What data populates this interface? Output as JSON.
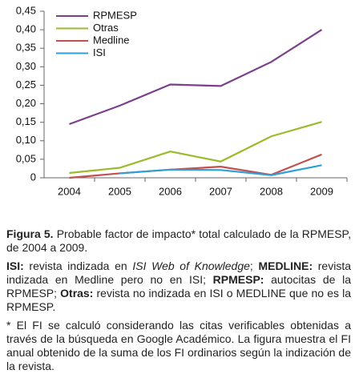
{
  "chart_data": {
    "type": "line",
    "categories": [
      "2004",
      "2005",
      "2006",
      "2007",
      "2008",
      "2009"
    ],
    "series": [
      {
        "name": "RPMESP",
        "color": "#7b3f8c",
        "values": [
          0.145,
          0.195,
          0.252,
          0.248,
          0.313,
          0.4
        ]
      },
      {
        "name": "Otras",
        "color": "#9bbb2c",
        "values": [
          0.013,
          0.027,
          0.071,
          0.044,
          0.112,
          0.151
        ]
      },
      {
        "name": "Medline",
        "color": "#c0504d",
        "values": [
          0.0,
          0.012,
          0.022,
          0.03,
          0.008,
          0.063
        ]
      },
      {
        "name": "ISI",
        "color": "#2e9fd8",
        "values": [
          null,
          0.012,
          0.022,
          0.021,
          0.007,
          0.034
        ]
      }
    ],
    "ylim": [
      0,
      0.45
    ],
    "yticks": [
      {
        "value": 0,
        "label": "0"
      },
      {
        "value": 0.05,
        "label": "0,05"
      },
      {
        "value": 0.1,
        "label": "0,10"
      },
      {
        "value": 0.15,
        "label": "0,15"
      },
      {
        "value": 0.2,
        "label": "0,20"
      },
      {
        "value": 0.25,
        "label": "0,25"
      },
      {
        "value": 0.3,
        "label": "0,30"
      },
      {
        "value": 0.35,
        "label": "0,35"
      },
      {
        "value": 0.4,
        "label": "0,40"
      },
      {
        "value": 0.45,
        "label": "0,45"
      }
    ],
    "legend": "upper left"
  },
  "caption": {
    "figure_label": "Figura 5.",
    "figure_text": " Probable factor de impacto* total calculado de la RPMESP, de 2004 a 2009.",
    "abbreviations": [
      {
        "text": "ISI:",
        "bold": true
      },
      {
        "text": " revista indizada en "
      },
      {
        "text": "ISI Web of Knowledge",
        "italic": true
      },
      {
        "text": "; "
      },
      {
        "text": "MEDLINE:",
        "bold": true
      },
      {
        "text": " revista indizada en Medline pero no en ISI; "
      },
      {
        "text": "RPMESP:",
        "bold": true
      },
      {
        "text": " autocitas de la RPMESP; "
      },
      {
        "text": "Otras:",
        "bold": true
      },
      {
        "text": " revista no indizada en ISI o MEDLINE que no es la RPMESP."
      }
    ],
    "note": "* El FI se calculó considerando las citas verificables obtenidas a través de la búsqueda en Google Académico. La figura muestra el FI anual obtenido de la suma de los FI ordinarios según la indización de la revista."
  }
}
